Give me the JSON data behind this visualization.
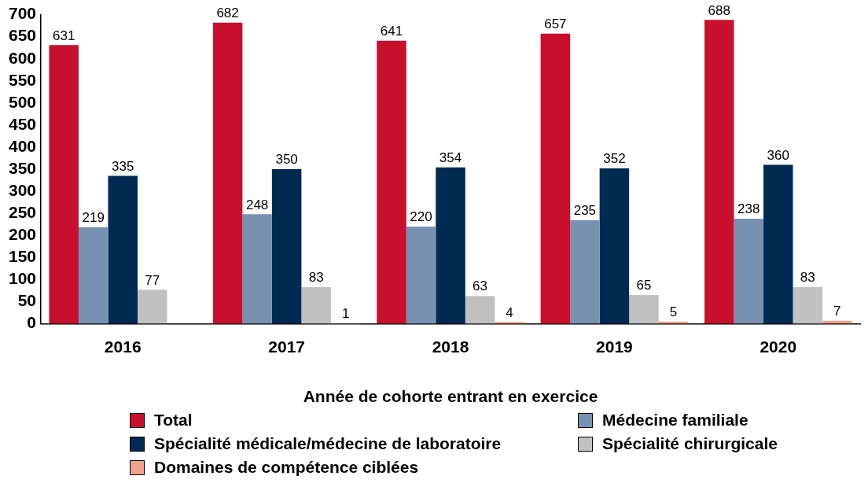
{
  "chart_data": {
    "type": "bar",
    "xlabel": "Année de cohorte entrant en exercice",
    "categories": [
      "2016",
      "2017",
      "2018",
      "2019",
      "2020"
    ],
    "series": [
      {
        "name": "Total",
        "color": "#c8102e",
        "values": [
          631,
          682,
          641,
          657,
          688
        ]
      },
      {
        "name": "Médecine familiale",
        "color": "#7891b0",
        "values": [
          219,
          248,
          220,
          235,
          238
        ]
      },
      {
        "name": "Spécialité médicale/médecine de laboratoire",
        "color": "#002a52",
        "values": [
          335,
          350,
          354,
          352,
          360
        ]
      },
      {
        "name": "Spécialité chirurgicale",
        "color": "#c1c1c1",
        "values": [
          77,
          83,
          63,
          65,
          83
        ]
      },
      {
        "name": "Domaines de compétence ciblées",
        "color": "#f0a08c",
        "values": [
          null,
          1,
          4,
          5,
          7
        ]
      }
    ],
    "ylim": [
      0,
      700
    ],
    "yticks": [
      0,
      50,
      100,
      150,
      200,
      250,
      300,
      350,
      400,
      450,
      500,
      550,
      600,
      650,
      700
    ],
    "grid": false,
    "legend": "bottom",
    "data_labels": true
  }
}
